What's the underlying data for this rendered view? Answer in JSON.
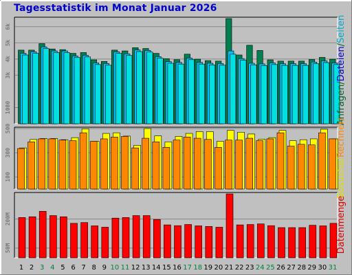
{
  "header": {
    "title": "Tagesstatistik im Monat Januar 2026"
  },
  "side_labels": {
    "top": [
      {
        "text": "Anfragen",
        "color": "#006633"
      },
      {
        "text": "/",
        "color": "#006633"
      },
      {
        "text": "Dateien",
        "color": "#0000cc"
      },
      {
        "text": "/",
        "color": "#006633"
      },
      {
        "text": "Seiten",
        "color": "#00aacc"
      }
    ],
    "middle": [
      {
        "text": "Besuche",
        "color": "#dddd00"
      },
      {
        "text": "/",
        "color": "#dddd00"
      },
      {
        "text": "Rechner",
        "color": "#ff8800"
      },
      {
        "text": "/",
        "color": "#ff8800"
      }
    ],
    "bottom": [
      {
        "text": "Datenmenge",
        "color": "#dd0000"
      }
    ]
  },
  "colors": {
    "background": "#c0c0c0",
    "panel_bg": "#c0c0c0",
    "grid": "#888888",
    "weekday_label": "#000000",
    "weekend_label": "#008040",
    "anfragen": "#008050",
    "dateien": "#00c0ff",
    "seiten": "#00e0e0",
    "besuche": "#ffff00",
    "rechner": "#ff8800",
    "datenmenge": "#ff0000"
  },
  "chart_data": [
    {
      "type": "bar",
      "panel": "top",
      "x": [
        1,
        2,
        3,
        4,
        5,
        6,
        7,
        8,
        9,
        10,
        11,
        12,
        13,
        14,
        15,
        16,
        17,
        18,
        19,
        20,
        21,
        22,
        23,
        24,
        25,
        26,
        27,
        28,
        29,
        30,
        31
      ],
      "weekend": [
        3,
        4,
        10,
        11,
        17,
        18,
        24,
        25,
        31
      ],
      "yticks": [
        "1000",
        "3k",
        "4k",
        "5k",
        "6k"
      ],
      "ytick_values": [
        1000,
        3000,
        4000,
        5000,
        6000
      ],
      "ylim": [
        0,
        6500
      ],
      "series": [
        {
          "name": "Anfragen",
          "values": [
            4550,
            4550,
            4950,
            4620,
            4580,
            4350,
            4400,
            3950,
            3850,
            4550,
            4500,
            4700,
            4650,
            4350,
            4020,
            3960,
            4300,
            3990,
            3900,
            3870,
            6500,
            4250,
            4850,
            4530,
            3950,
            3870,
            3870,
            3870,
            3970,
            4100,
            3990
          ]
        },
        {
          "name": "Dateien",
          "values": [
            4350,
            4450,
            4750,
            4500,
            4500,
            4190,
            4230,
            3760,
            3720,
            4450,
            4320,
            4560,
            4530,
            4150,
            3840,
            3790,
            4060,
            3790,
            3740,
            3720,
            4500,
            4030,
            3740,
            3700,
            3760,
            3710,
            3710,
            3710,
            3810,
            3880,
            3760
          ]
        },
        {
          "name": "Seiten",
          "values": [
            4250,
            4350,
            4650,
            4400,
            4400,
            4090,
            4130,
            3660,
            3620,
            4350,
            4220,
            4460,
            4430,
            4050,
            3740,
            3690,
            3960,
            3690,
            3640,
            3620,
            4300,
            3930,
            3640,
            3600,
            3660,
            3610,
            3610,
            3610,
            3710,
            3780,
            3660
          ]
        }
      ]
    },
    {
      "type": "bar",
      "panel": "middle",
      "x": [
        1,
        2,
        3,
        4,
        5,
        6,
        7,
        8,
        9,
        10,
        11,
        12,
        13,
        14,
        15,
        16,
        17,
        18,
        19,
        20,
        21,
        22,
        23,
        24,
        25,
        26,
        27,
        28,
        29,
        30,
        31
      ],
      "yticks": [
        "100",
        "300",
        "500"
      ],
      "ytick_values": [
        100,
        300,
        500
      ],
      "ylim": [
        0,
        500
      ],
      "series": [
        {
          "name": "Besuche",
          "values": [
            340,
            410,
            418,
            418,
            408,
            425,
            498,
            395,
            460,
            465,
            438,
            362,
            500,
            440,
            390,
            435,
            460,
            475,
            475,
            395,
            485,
            470,
            455,
            412,
            425,
            485,
            400,
            408,
            415,
            495,
            415
          ]
        },
        {
          "name": "Rechner",
          "values": [
            335,
            390,
            415,
            415,
            405,
            400,
            465,
            395,
            415,
            430,
            435,
            340,
            420,
            390,
            345,
            405,
            430,
            420,
            410,
            345,
            405,
            405,
            420,
            400,
            415,
            465,
            355,
            370,
            365,
            465,
            415
          ]
        }
      ]
    },
    {
      "type": "bar",
      "panel": "bottom",
      "x": [
        1,
        2,
        3,
        4,
        5,
        6,
        7,
        8,
        9,
        10,
        11,
        12,
        13,
        14,
        15,
        16,
        17,
        18,
        19,
        20,
        21,
        22,
        23,
        24,
        25,
        26,
        27,
        28,
        29,
        30,
        31
      ],
      "yticks": [
        "50M",
        "200M"
      ],
      "ytick_values": [
        50,
        200
      ],
      "ylim": [
        0,
        330
      ],
      "series": [
        {
          "name": "Datenmenge",
          "values": [
            208,
            212,
            240,
            218,
            212,
            178,
            182,
            165,
            158,
            205,
            208,
            218,
            218,
            198,
            170,
            166,
            172,
            165,
            162,
            158,
            330,
            170,
            172,
            175,
            166,
            156,
            156,
            156,
            168,
            165,
            178
          ]
        }
      ]
    }
  ]
}
